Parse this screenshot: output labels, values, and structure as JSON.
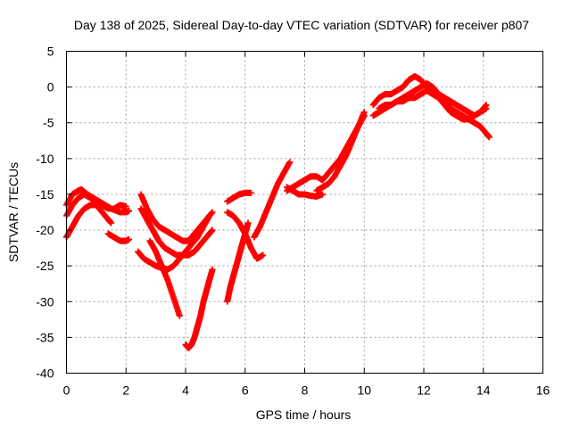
{
  "chart_data": {
    "type": "scatter",
    "title": "Day 138 of 2025, Sidereal Day-to-day VTEC variation (SDTVAR) for receiver p807",
    "xlabel": "GPS time / hours",
    "ylabel": "SDTVAR / TECUs",
    "xlim": [
      0,
      16
    ],
    "ylim": [
      -40,
      5
    ],
    "x_ticks": [
      0,
      2,
      4,
      6,
      8,
      10,
      12,
      14,
      16
    ],
    "y_ticks": [
      5,
      0,
      -5,
      -10,
      -15,
      -20,
      -25,
      -30,
      -35,
      -40
    ],
    "grid": true,
    "marker": "+",
    "color": "#ff0000",
    "series": [
      {
        "x": [
          0.0,
          0.2,
          0.4,
          0.5,
          0.7,
          0.9,
          1.1,
          1.3,
          1.5,
          1.8,
          2.0,
          2.1
        ],
        "y": [
          -16.5,
          -15.0,
          -14.5,
          -14.3,
          -15.0,
          -15.5,
          -16.0,
          -16.5,
          -17.0,
          -17.5,
          -17.5,
          -17.3
        ]
      },
      {
        "x": [
          0.0,
          0.2,
          0.4,
          0.6,
          0.8,
          1.0,
          1.2,
          1.4,
          1.6,
          1.8,
          2.0
        ],
        "y": [
          -18.0,
          -16.5,
          -15.5,
          -15.0,
          -15.5,
          -16.0,
          -16.5,
          -17.0,
          -17.0,
          -16.5,
          -16.7
        ]
      },
      {
        "x": [
          0.0,
          0.2,
          0.4,
          0.6,
          0.8,
          1.0,
          1.2,
          1.4,
          1.5
        ],
        "y": [
          -21.0,
          -19.5,
          -18.0,
          -17.0,
          -16.5,
          -16.5,
          -17.5,
          -18.5,
          -19.0
        ]
      },
      {
        "x": [
          1.4,
          1.6,
          1.8,
          2.0,
          2.1
        ],
        "y": [
          -20.5,
          -21.0,
          -21.5,
          -21.5,
          -21.3
        ]
      },
      {
        "x": [
          2.5,
          2.7,
          2.9,
          3.1,
          3.3,
          3.5,
          3.7,
          3.9,
          4.1,
          4.3,
          4.5,
          4.7,
          4.9
        ],
        "y": [
          -15.0,
          -17.0,
          -18.5,
          -19.5,
          -20.0,
          -20.5,
          -21.0,
          -21.5,
          -21.5,
          -20.5,
          -19.5,
          -18.5,
          -17.5
        ]
      },
      {
        "x": [
          2.5,
          2.7,
          2.9,
          3.1,
          3.3,
          3.5,
          3.7,
          3.9,
          4.1,
          4.3,
          4.5,
          4.7,
          4.9
        ],
        "y": [
          -17.0,
          -18.5,
          -20.0,
          -21.5,
          -22.5,
          -23.0,
          -23.5,
          -23.5,
          -23.5,
          -23.0,
          -22.0,
          -21.0,
          -20.0
        ]
      },
      {
        "x": [
          2.4,
          2.6,
          2.8,
          3.0,
          3.2,
          3.4,
          3.6,
          3.8,
          4.0,
          4.2,
          4.4,
          4.6,
          4.8
        ],
        "y": [
          -23.0,
          -24.0,
          -24.5,
          -25.0,
          -25.3,
          -25.5,
          -25.0,
          -24.0,
          -23.0,
          -22.0,
          -21.0,
          -19.5,
          -18.0
        ]
      },
      {
        "x": [
          2.8,
          3.0,
          3.2,
          3.4,
          3.6,
          3.8
        ],
        "y": [
          -21.5,
          -23.0,
          -25.0,
          -27.0,
          -29.5,
          -32.0
        ]
      },
      {
        "x": [
          4.0,
          4.1,
          4.2,
          4.3,
          4.4,
          4.5,
          4.6,
          4.7,
          4.8,
          4.9
        ],
        "y": [
          -36.0,
          -36.5,
          -36.0,
          -35.0,
          -33.5,
          -32.0,
          -30.0,
          -28.5,
          -27.0,
          -25.5
        ]
      },
      {
        "x": [
          5.4,
          5.5,
          5.6,
          5.7,
          5.8,
          5.9,
          6.0,
          6.1
        ],
        "y": [
          -30.0,
          -28.0,
          -26.5,
          -25.0,
          -23.5,
          -22.0,
          -20.5,
          -19.0
        ]
      },
      {
        "x": [
          5.4,
          5.6,
          5.8,
          6.0,
          6.2
        ],
        "y": [
          -16.0,
          -15.5,
          -15.0,
          -14.8,
          -14.8
        ]
      },
      {
        "x": [
          5.4,
          5.6,
          5.8,
          6.0,
          6.2,
          6.4,
          6.6
        ],
        "y": [
          -17.5,
          -18.0,
          -19.0,
          -20.5,
          -22.5,
          -24.0,
          -23.5
        ]
      },
      {
        "x": [
          6.3,
          6.5,
          6.7,
          6.9,
          7.1,
          7.3,
          7.5
        ],
        "y": [
          -21.0,
          -19.5,
          -17.5,
          -15.5,
          -13.5,
          -12.0,
          -10.5
        ]
      },
      {
        "x": [
          7.4,
          7.6,
          7.8,
          8.0,
          8.2,
          8.4,
          8.6
        ],
        "y": [
          -14.5,
          -14.0,
          -13.5,
          -13.0,
          -12.5,
          -12.5,
          -13.0
        ]
      },
      {
        "x": [
          7.4,
          7.6,
          7.8,
          8.0,
          8.2,
          8.4,
          8.6
        ],
        "y": [
          -14.0,
          -14.5,
          -15.0,
          -15.0,
          -15.2,
          -15.3,
          -15.0
        ]
      },
      {
        "x": [
          8.4,
          8.6,
          8.8,
          9.0,
          9.2,
          9.4,
          9.6,
          9.8,
          10.0
        ],
        "y": [
          -14.5,
          -14.0,
          -13.5,
          -12.5,
          -11.0,
          -9.5,
          -7.5,
          -5.5,
          -3.5
        ]
      },
      {
        "x": [
          8.6,
          8.8,
          9.0,
          9.2,
          9.4,
          9.6,
          9.8,
          10.0
        ],
        "y": [
          -13.0,
          -12.0,
          -11.0,
          -10.0,
          -8.5,
          -7.0,
          -5.5,
          -4.0
        ]
      },
      {
        "x": [
          10.3,
          10.5,
          10.7,
          10.9,
          11.1,
          11.3,
          11.5,
          11.7,
          11.9,
          12.1,
          12.3,
          12.5,
          12.7,
          12.9,
          13.1,
          13.3,
          13.5,
          13.7,
          13.9,
          14.1
        ],
        "y": [
          -2.5,
          -1.5,
          -1.0,
          -1.0,
          -0.5,
          0.0,
          1.0,
          1.5,
          1.0,
          0.0,
          -0.5,
          -1.0,
          -1.5,
          -2.0,
          -2.5,
          -3.0,
          -3.5,
          -4.0,
          -3.5,
          -3.0
        ]
      },
      {
        "x": [
          10.3,
          10.5,
          10.7,
          10.9,
          11.1,
          11.3,
          11.5,
          11.7,
          11.9,
          12.1,
          12.3,
          12.5,
          12.7,
          12.9,
          13.1,
          13.3,
          13.5,
          13.7,
          13.9,
          14.1
        ],
        "y": [
          -4.0,
          -3.5,
          -3.0,
          -2.5,
          -2.0,
          -1.5,
          -1.0,
          -0.5,
          0.0,
          0.5,
          0.0,
          -1.0,
          -2.0,
          -3.0,
          -3.5,
          -4.0,
          -4.5,
          -4.0,
          -3.5,
          -2.5
        ]
      },
      {
        "x": [
          10.5,
          10.7,
          10.9,
          11.1,
          11.3,
          11.5,
          11.7,
          11.9,
          12.1,
          12.3,
          12.5,
          12.7,
          12.9,
          13.1,
          13.3,
          13.5,
          13.7,
          13.9,
          14.1,
          14.2
        ],
        "y": [
          -3.0,
          -2.5,
          -2.5,
          -2.0,
          -2.0,
          -1.5,
          -1.5,
          -1.0,
          -0.5,
          -1.0,
          -1.5,
          -2.5,
          -3.5,
          -4.0,
          -4.5,
          -4.5,
          -5.0,
          -5.5,
          -6.5,
          -7.0
        ]
      }
    ]
  }
}
